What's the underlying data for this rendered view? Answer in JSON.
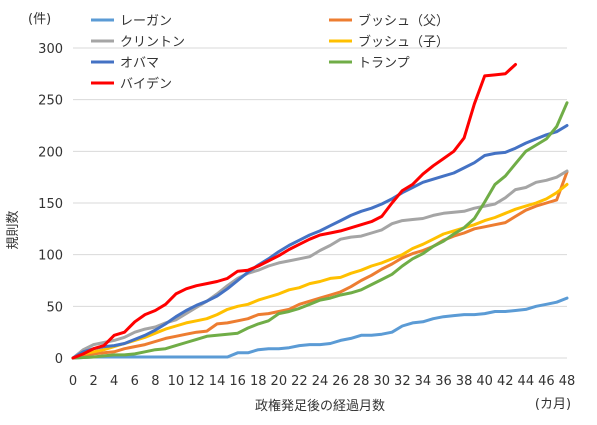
{
  "chart_data": {
    "type": "line",
    "title": "",
    "xlabel": "政権発足後の経過月数",
    "ylabel": "規則数",
    "y_unit_label": "(件)",
    "x_unit_label": "(カ月)",
    "xlim": [
      0,
      48
    ],
    "ylim": [
      0,
      300
    ],
    "x_ticks": [
      "0",
      "2",
      "4",
      "6",
      "8",
      "10",
      "12",
      "14",
      "16",
      "18",
      "20",
      "22",
      "24",
      "26",
      "28",
      "30",
      "32",
      "34",
      "36",
      "38",
      "40",
      "42",
      "44",
      "46",
      "48"
    ],
    "y_ticks": [
      "0",
      "50",
      "100",
      "150",
      "200",
      "250",
      "300"
    ],
    "grid": true,
    "legend_position": "top-left",
    "series": [
      {
        "name": "レーガン",
        "color": "#5b9bd5",
        "x": [
          0,
          2,
          4,
          6,
          8,
          10,
          12,
          14,
          15,
          16,
          17,
          18,
          19,
          20,
          21,
          22,
          23,
          24,
          25,
          26,
          27,
          28,
          29,
          30,
          31,
          32,
          33,
          34,
          35,
          36,
          37,
          38,
          39,
          40,
          41,
          42,
          43,
          44,
          45,
          46,
          47,
          48
        ],
        "y": [
          0,
          1,
          1,
          1,
          1,
          1,
          1,
          1,
          1,
          5,
          5,
          8,
          9,
          9,
          10,
          12,
          13,
          13,
          14,
          17,
          19,
          22,
          22,
          23,
          25,
          31,
          34,
          35,
          38,
          40,
          41,
          42,
          42,
          43,
          45,
          45,
          46,
          47,
          50,
          52,
          54,
          58
        ]
      },
      {
        "name": "ブッシュ（父）",
        "color": "#ed7d31",
        "x": [
          0,
          1,
          2,
          3,
          4,
          5,
          6,
          7,
          8,
          9,
          10,
          11,
          12,
          13,
          14,
          15,
          16,
          17,
          18,
          19,
          20,
          21,
          22,
          23,
          24,
          25,
          26,
          27,
          28,
          29,
          30,
          31,
          32,
          33,
          34,
          35,
          36,
          37,
          38,
          39,
          40,
          41,
          42,
          43,
          44,
          45,
          46,
          47,
          48
        ],
        "y": [
          0,
          2,
          4,
          5,
          6,
          9,
          11,
          13,
          16,
          19,
          21,
          23,
          25,
          26,
          33,
          34,
          36,
          38,
          42,
          43,
          45,
          47,
          52,
          55,
          58,
          61,
          64,
          69,
          75,
          80,
          86,
          91,
          97,
          101,
          104,
          108,
          114,
          118,
          121,
          125,
          127,
          129,
          131,
          137,
          143,
          147,
          150,
          153,
          180
        ]
      },
      {
        "name": "クリントン",
        "color": "#a5a5a5",
        "x": [
          0,
          1,
          2,
          3,
          4,
          5,
          6,
          7,
          8,
          9,
          10,
          11,
          12,
          13,
          14,
          15,
          16,
          17,
          18,
          19,
          20,
          21,
          22,
          23,
          24,
          25,
          26,
          27,
          28,
          29,
          30,
          31,
          32,
          33,
          34,
          35,
          36,
          37,
          38,
          39,
          40,
          41,
          42,
          43,
          44,
          45,
          46,
          47,
          48
        ],
        "y": [
          0,
          8,
          13,
          15,
          17,
          20,
          25,
          28,
          30,
          34,
          37,
          43,
          49,
          55,
          62,
          70,
          77,
          82,
          85,
          89,
          92,
          94,
          96,
          98,
          104,
          109,
          115,
          117,
          118,
          121,
          124,
          130,
          133,
          134,
          135,
          138,
          140,
          141,
          142,
          145,
          147,
          149,
          155,
          163,
          165,
          170,
          172,
          175,
          181
        ]
      },
      {
        "name": "ブッシュ（子）",
        "color": "#ffc000",
        "x": [
          0,
          1,
          2,
          3,
          4,
          5,
          6,
          7,
          8,
          9,
          10,
          11,
          12,
          13,
          14,
          15,
          16,
          17,
          18,
          19,
          20,
          21,
          22,
          23,
          24,
          25,
          26,
          27,
          28,
          29,
          30,
          31,
          32,
          33,
          34,
          35,
          36,
          37,
          38,
          39,
          40,
          41,
          42,
          43,
          44,
          45,
          46,
          47,
          48
        ],
        "y": [
          0,
          4,
          6,
          8,
          11,
          14,
          17,
          20,
          24,
          28,
          31,
          34,
          36,
          38,
          42,
          47,
          50,
          52,
          56,
          59,
          62,
          66,
          68,
          72,
          74,
          77,
          78,
          82,
          85,
          89,
          92,
          96,
          100,
          106,
          110,
          115,
          120,
          123,
          126,
          129,
          133,
          136,
          140,
          144,
          147,
          150,
          154,
          160,
          168
        ]
      },
      {
        "name": "オバマ",
        "color": "#4472c4",
        "x": [
          0,
          1,
          2,
          3,
          4,
          5,
          6,
          7,
          8,
          9,
          10,
          11,
          12,
          13,
          14,
          15,
          16,
          17,
          18,
          19,
          20,
          21,
          22,
          23,
          24,
          25,
          26,
          27,
          28,
          29,
          30,
          31,
          32,
          33,
          34,
          35,
          36,
          37,
          38,
          39,
          40,
          41,
          42,
          43,
          44,
          45,
          46,
          47,
          48
        ],
        "y": [
          0,
          6,
          9,
          11,
          12,
          14,
          18,
          22,
          27,
          33,
          40,
          46,
          51,
          55,
          60,
          67,
          75,
          83,
          90,
          96,
          103,
          109,
          114,
          119,
          123,
          128,
          133,
          138,
          142,
          145,
          149,
          154,
          160,
          165,
          170,
          173,
          176,
          179,
          184,
          189,
          196,
          198,
          199,
          203,
          208,
          212,
          216,
          219,
          225
        ]
      },
      {
        "name": "トランプ",
        "color": "#70ad47",
        "x": [
          0,
          2,
          3,
          4,
          5,
          6,
          7,
          8,
          9,
          10,
          11,
          12,
          13,
          14,
          15,
          16,
          17,
          18,
          19,
          20,
          21,
          22,
          23,
          24,
          25,
          26,
          27,
          28,
          29,
          30,
          31,
          32,
          33,
          34,
          35,
          36,
          37,
          38,
          39,
          40,
          41,
          42,
          43,
          44,
          45,
          46,
          47,
          48
        ],
        "y": [
          0,
          1,
          2,
          3,
          3,
          4,
          6,
          8,
          9,
          12,
          15,
          18,
          21,
          22,
          23,
          24,
          29,
          33,
          36,
          43,
          45,
          48,
          52,
          56,
          58,
          61,
          63,
          66,
          71,
          76,
          81,
          89,
          96,
          101,
          108,
          113,
          120,
          126,
          135,
          151,
          168,
          176,
          188,
          200,
          206,
          212,
          224,
          247
        ]
      },
      {
        "name": "バイデン",
        "color": "#ff0000",
        "x": [
          0,
          1,
          2,
          3,
          4,
          5,
          6,
          7,
          8,
          9,
          10,
          11,
          12,
          13,
          14,
          15,
          16,
          17,
          18,
          19,
          20,
          21,
          22,
          23,
          24,
          25,
          26,
          27,
          28,
          29,
          30,
          31,
          32,
          33,
          34,
          35,
          36,
          37,
          38,
          39,
          40,
          41,
          42,
          43
        ],
        "y": [
          0,
          4,
          9,
          12,
          22,
          25,
          35,
          42,
          46,
          52,
          62,
          67,
          70,
          72,
          74,
          77,
          84,
          85,
          89,
          94,
          99,
          105,
          110,
          115,
          119,
          121,
          123,
          126,
          129,
          132,
          137,
          150,
          162,
          168,
          178,
          186,
          193,
          200,
          213,
          246,
          273,
          274,
          275,
          284
        ]
      }
    ]
  }
}
